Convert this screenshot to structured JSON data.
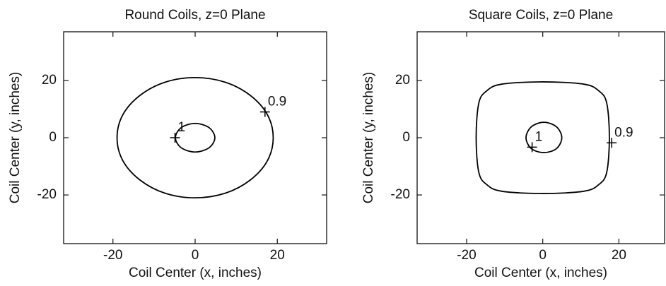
{
  "chart_data": [
    {
      "type": "contour",
      "title": "Round Coils, z=0 Plane",
      "xlabel": "Coil Center (x, inches)",
      "ylabel": "Coil Center (y, inches)",
      "xlim": [
        -32,
        32
      ],
      "ylim": [
        -37,
        37
      ],
      "xticks": [
        -20,
        0,
        20
      ],
      "yticks": [
        -20,
        0,
        20
      ],
      "color": "#000000",
      "contours": [
        {
          "level": 1,
          "marker_x": -4.9,
          "marker_y": 0,
          "x": [
            4.8,
            3.4,
            0,
            -3.4,
            -4.8,
            -3.4,
            0,
            3.4
          ],
          "y": [
            0,
            3.5,
            5,
            3.5,
            0,
            -3.5,
            -5,
            -3.5
          ]
        },
        {
          "level": 0.9,
          "marker_x": 17,
          "marker_y": 9,
          "x": [
            19,
            17.6,
            13.4,
            7.3,
            0,
            -7.3,
            -13.4,
            -17.6,
            -19,
            -17.6,
            -13.4,
            -7.3,
            0,
            7.3,
            13.4,
            17.6
          ],
          "y": [
            0,
            8,
            14.8,
            19.4,
            21,
            19.4,
            14.8,
            8,
            0,
            -8,
            -14.8,
            -19.4,
            -21,
            -19.4,
            -14.8,
            -8
          ]
        }
      ]
    },
    {
      "type": "contour",
      "title": "Square Coils, z=0 Plane",
      "xlabel": "Coil Center (x, inches)",
      "ylabel": "Coil Center (y, inches)",
      "xlim": [
        -33,
        32
      ],
      "ylim": [
        -37,
        37
      ],
      "xticks": [
        -20,
        0,
        20
      ],
      "yticks": [
        -20,
        0,
        20
      ],
      "color": "#000000",
      "contours": [
        {
          "level": 1,
          "marker_x": -2.8,
          "marker_y": -3.3,
          "x": [
            5,
            3.6,
            0.3,
            -3,
            -4.4,
            -3,
            0.3,
            3.6
          ],
          "y": [
            0,
            3.8,
            5.4,
            3.8,
            0,
            -3.8,
            -5.2,
            -3.8
          ]
        },
        {
          "level": 0.9,
          "marker_x": 18.1,
          "marker_y": -1.8,
          "x": [
            17.5,
            16.8,
            14.7,
            10.8,
            0,
            -10.8,
            -14.7,
            -16.8,
            -17.5,
            -16.8,
            -14.7,
            -10.8,
            0,
            10.8,
            14.7,
            16.8
          ],
          "y": [
            0,
            12.1,
            16.4,
            18.7,
            19.5,
            18.7,
            16.4,
            12.1,
            0,
            -12.1,
            -16.4,
            -18.7,
            -19.5,
            -18.7,
            -16.4,
            -12.1
          ]
        }
      ]
    }
  ]
}
